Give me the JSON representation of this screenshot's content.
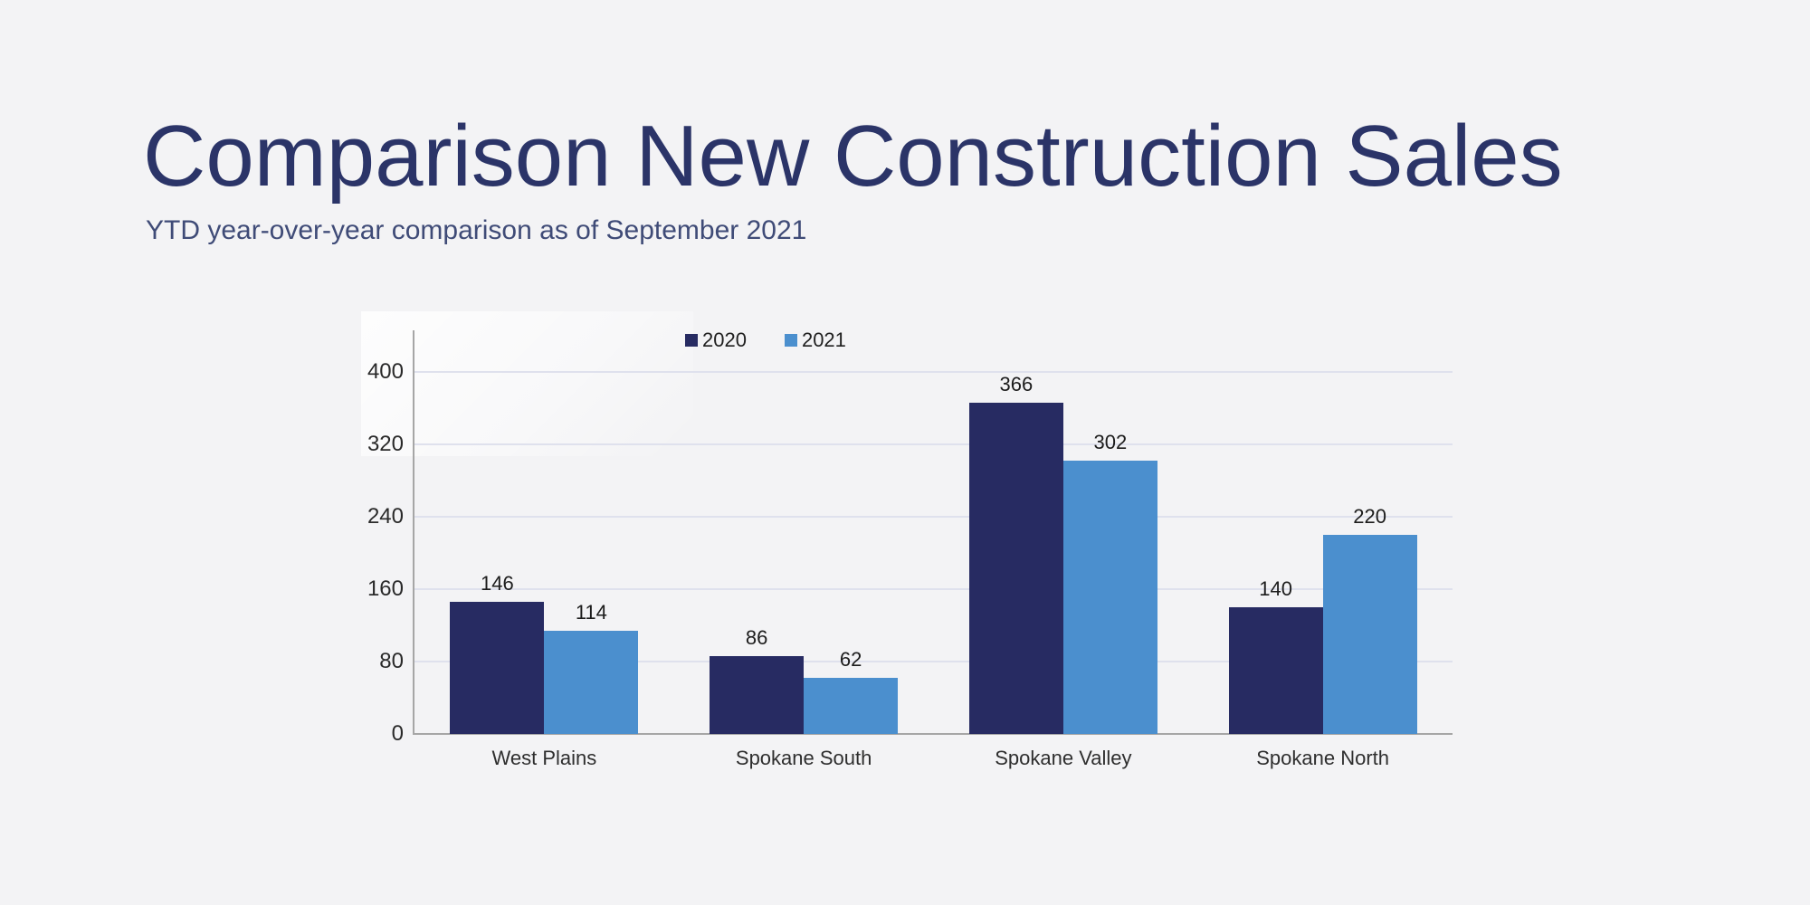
{
  "page": {
    "title": "Comparison New Construction Sales",
    "subtitle": "YTD year-over-year comparison as of September 2021"
  },
  "chart_data": {
    "type": "bar",
    "title": "",
    "xlabel": "",
    "ylabel": "",
    "categories": [
      "West Plains",
      "Spokane South",
      "Spokane Valley",
      "Spokane North"
    ],
    "series": [
      {
        "name": "2020",
        "color": "#272b62",
        "values": [
          146,
          86,
          366,
          140
        ]
      },
      {
        "name": "2021",
        "color": "#4b8fce",
        "values": [
          114,
          62,
          302,
          220
        ]
      }
    ],
    "ylim": [
      0,
      400
    ],
    "yticks": [
      0,
      80,
      160,
      240,
      320,
      400
    ],
    "grid": true,
    "legend_position": "top-left-of-plot"
  },
  "colors": {
    "background": "#f3f3f5",
    "title": "#2b3468",
    "subtitle": "#3f4b77",
    "gridline": "#dfe1ed",
    "axis": "#a6a6a6",
    "tick_label": "#2a2a2a",
    "value_label": "#1c1c1c",
    "category_label": "#2e2e2e"
  }
}
